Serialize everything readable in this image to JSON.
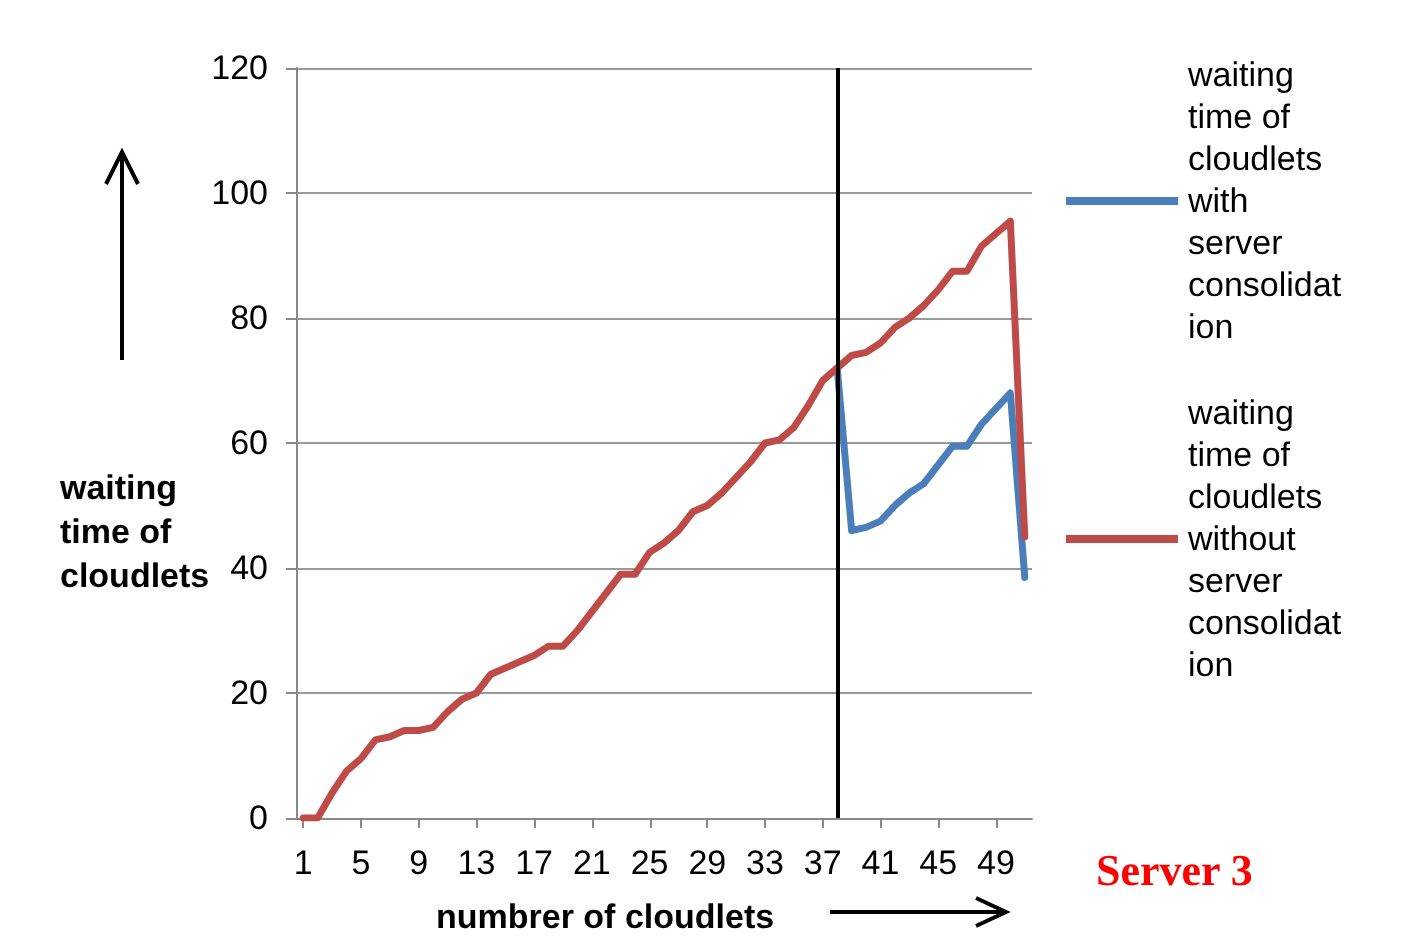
{
  "chart_data": {
    "type": "line",
    "xlabel": "numbrer of cloudlets",
    "ylabel": "waiting time of cloudlets",
    "x": [
      1,
      2,
      3,
      4,
      5,
      6,
      7,
      8,
      9,
      10,
      11,
      12,
      13,
      14,
      15,
      16,
      17,
      18,
      19,
      20,
      21,
      22,
      23,
      24,
      25,
      26,
      27,
      28,
      29,
      30,
      31,
      32,
      33,
      34,
      35,
      36,
      37,
      38,
      39,
      40,
      41,
      42,
      43,
      44,
      45,
      46,
      47,
      48,
      49,
      50,
      51
    ],
    "series": [
      {
        "name": "waiting time of cloudlets with server consolidation",
        "color": "#4a7ebb",
        "values": [
          null,
          null,
          null,
          null,
          null,
          null,
          null,
          null,
          null,
          null,
          null,
          null,
          null,
          null,
          null,
          null,
          null,
          null,
          null,
          null,
          null,
          null,
          null,
          null,
          null,
          null,
          null,
          null,
          null,
          null,
          null,
          null,
          null,
          null,
          null,
          null,
          null,
          72,
          46,
          46.5,
          47.5,
          50,
          52,
          53.5,
          56.5,
          59.5,
          59.5,
          63,
          65.5,
          68,
          38.5
        ]
      },
      {
        "name": "waiting time of cloudlets without server consolidation",
        "color": "#be4b48",
        "values": [
          0,
          0,
          4,
          7.5,
          9.5,
          12.5,
          13,
          14,
          14,
          14.5,
          17,
          19,
          20,
          23,
          24,
          25,
          26,
          27.5,
          27.5,
          30,
          33,
          36,
          39,
          39,
          42.5,
          44,
          46,
          49,
          50,
          52,
          54.5,
          57,
          60,
          60.5,
          62.5,
          66,
          70,
          72,
          74,
          74.5,
          76,
          78.5,
          80,
          82,
          84.5,
          87.5,
          87.5,
          91.5,
          93.5,
          95.5,
          45
        ]
      }
    ],
    "xlim": [
      0.5,
      51.5
    ],
    "xticks": [
      1,
      5,
      9,
      13,
      17,
      21,
      25,
      29,
      33,
      37,
      41,
      45,
      49
    ],
    "ylim": [
      0,
      120
    ],
    "yticks": [
      0,
      20,
      40,
      60,
      80,
      100,
      120
    ],
    "ref_lines": [
      {
        "axis": "x",
        "value": 38,
        "color": "#000000"
      }
    ],
    "annotations": [
      "Server 3"
    ],
    "grid": "y",
    "legend": "right",
    "marker": "none",
    "line_style": "solid"
  }
}
